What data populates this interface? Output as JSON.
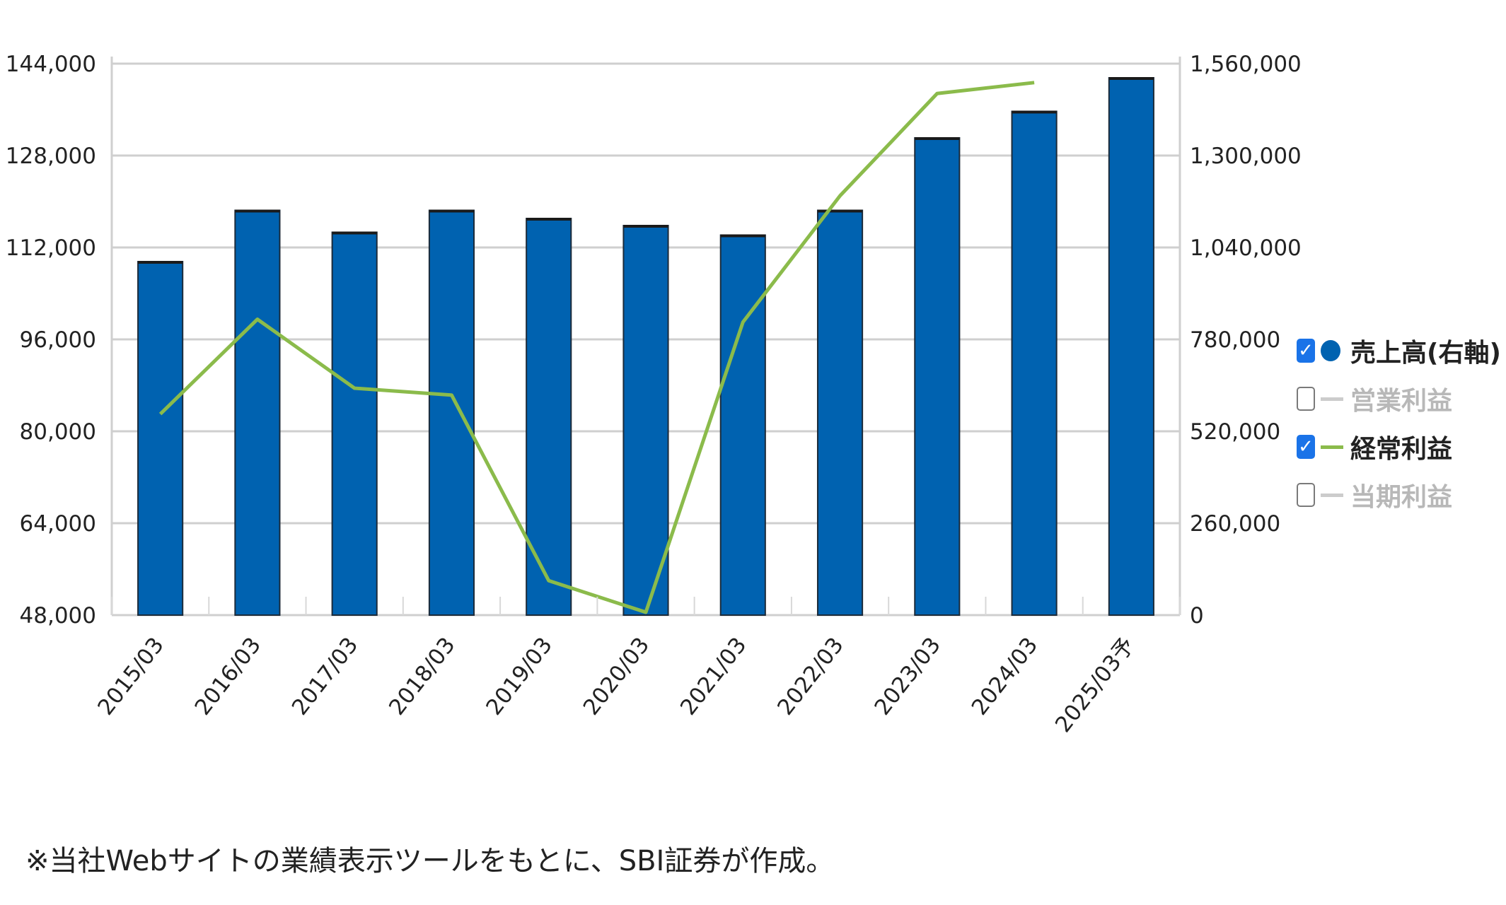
{
  "chart_data": {
    "type": "bar",
    "categories": [
      "2015/03",
      "2016/03",
      "2017/03",
      "2018/03",
      "2019/03",
      "2020/03",
      "2021/03",
      "2022/03",
      "2023/03",
      "2024/03",
      "2025/03予"
    ],
    "left_axis": {
      "ticks": [
        "144,000",
        "128,000",
        "112,000",
        "96,000",
        "80,000",
        "64,000",
        "48,000"
      ],
      "min": 48000,
      "max": 144000
    },
    "right_axis": {
      "ticks": [
        "1,560,000",
        "1,300,000",
        "1,040,000",
        "780,000",
        "520,000",
        "260,000",
        "0"
      ],
      "min": 0,
      "max": 1560000
    },
    "series": [
      {
        "name": "売上高(右軸)",
        "type": "bar",
        "axis": "right",
        "color": "#0062b0",
        "values": [
          1000000,
          1145000,
          1083000,
          1145000,
          1122000,
          1102000,
          1075000,
          1145000,
          1350000,
          1425000,
          1520000
        ]
      },
      {
        "name": "経常利益",
        "type": "line",
        "axis": "left",
        "color": "#8bbb4b",
        "values": [
          83000,
          99500,
          87500,
          86300,
          54000,
          48500,
          99000,
          121000,
          138800,
          140700,
          null
        ]
      }
    ],
    "grid": true
  },
  "legend": [
    {
      "label": "売上高(右軸)",
      "checked": true,
      "marker": "dot",
      "color": "#0062b0"
    },
    {
      "label": "営業利益",
      "checked": false,
      "marker": "dash",
      "color": "#cccccc"
    },
    {
      "label": "経常利益",
      "checked": true,
      "marker": "dash",
      "color": "#8bbb4b"
    },
    {
      "label": "当期利益",
      "checked": false,
      "marker": "dash",
      "color": "#cccccc"
    }
  ],
  "check_mark": "✓",
  "note": "※当社Webサイトの業績表示ツールをもとに、SBI証券が作成。"
}
